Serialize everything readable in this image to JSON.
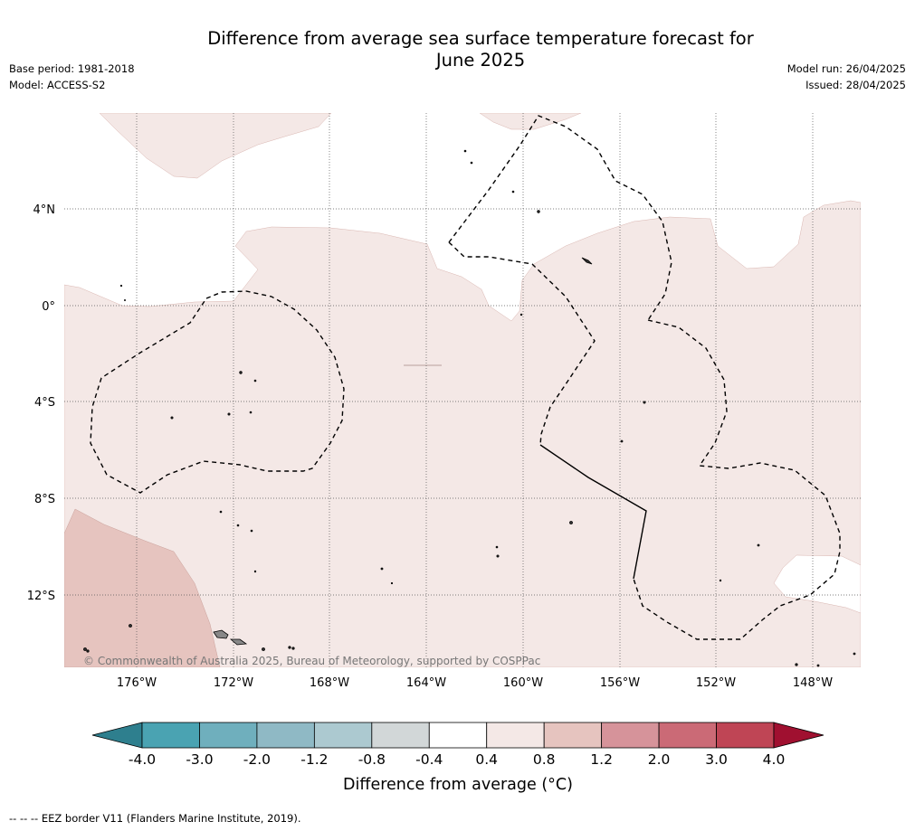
{
  "title_line1": "Difference from average sea surface temperature forecast for",
  "title_line2": "June 2025",
  "meta": {
    "base_period": "Base period: 1981-2018",
    "model": "Model: ACCESS-S2",
    "model_run": "Model run: 26/04/2025",
    "issued": "Issued: 28/04/2025"
  },
  "map": {
    "lat_labels": [
      "4°N",
      "0°",
      "4°S",
      "8°S",
      "12°S"
    ],
    "lon_labels": [
      "176°W",
      "172°W",
      "168°W",
      "164°W",
      "160°W",
      "156°W",
      "152°W",
      "148°W"
    ],
    "copyright": "© Commonwealth of Australia 2025, Bureau of Meteorology, supported by COSPPac",
    "fill_colors": {
      "light_warm": "#f4e8e6",
      "warm": "#e6c4bf",
      "land": "#888888"
    }
  },
  "colorbar": {
    "ticks": [
      "-4.0",
      "-3.0",
      "-2.0",
      "-1.2",
      "-0.8",
      "-0.4",
      "0.4",
      "0.8",
      "1.2",
      "2.0",
      "3.0",
      "4.0"
    ],
    "colors": [
      "#2e7f8e",
      "#4aa3b2",
      "#6fafbd",
      "#8fb9c5",
      "#acc9d0",
      "#d2d7d8",
      "#ffffff",
      "#f4e8e6",
      "#e6c4bf",
      "#d6939a",
      "#cb6a76",
      "#bf4555",
      "#a01030"
    ],
    "title": "Difference from average (°C)"
  },
  "footer": "--  --  -- EEZ border V11 (Flanders Marine Institute, 2019)."
}
